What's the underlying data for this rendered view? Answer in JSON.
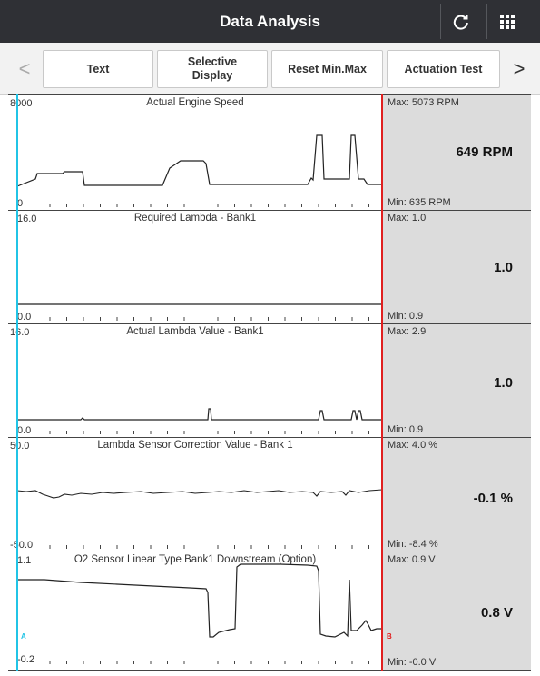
{
  "header": {
    "title": "Data Analysis",
    "refresh_icon": "refresh-icon",
    "grid_icon": "grid-menu-icon"
  },
  "toolbar": {
    "prev_arrow": "<",
    "next_arrow": ">",
    "buttons": [
      "Text",
      "Selective\nDisplay",
      "Reset Min.Max",
      "Actuation Test"
    ]
  },
  "cursors": {
    "a_label": "A",
    "b_label": "B",
    "a_color": "#21c4e6",
    "b_color": "#e02020"
  },
  "panels": [
    {
      "title": "Actual Engine Speed",
      "ymax": "8000",
      "ymin": "0",
      "max": "Max: 5073 RPM",
      "min": "Min: 635 RPM",
      "current": "649 RPM"
    },
    {
      "title": "Required Lambda - Bank1",
      "ymax": "16.0",
      "ymin": "0.0",
      "max": "Max: 1.0",
      "min": "Min: 0.9",
      "current": "1.0"
    },
    {
      "title": "Actual Lambda Value - Bank1",
      "ymax": "16.0",
      "ymin": "0.0",
      "max": "Max: 2.9",
      "min": "Min: 0.9",
      "current": "1.0"
    },
    {
      "title": "Lambda Sensor Correction Value - Bank 1",
      "ymax": "50.0",
      "ymin": "-50.0",
      "max": "Max: 4.0 %",
      "min": "Min: -8.4 %",
      "current": "-0.1 %"
    },
    {
      "title": "O2 Sensor Linear Type Bank1 Downstream (Option)",
      "ymax": "1.1",
      "ymin": "-0.2",
      "max": "Max: 0.9 V",
      "min": "Min: -0.0 V",
      "current": "0.8 V"
    }
  ]
}
